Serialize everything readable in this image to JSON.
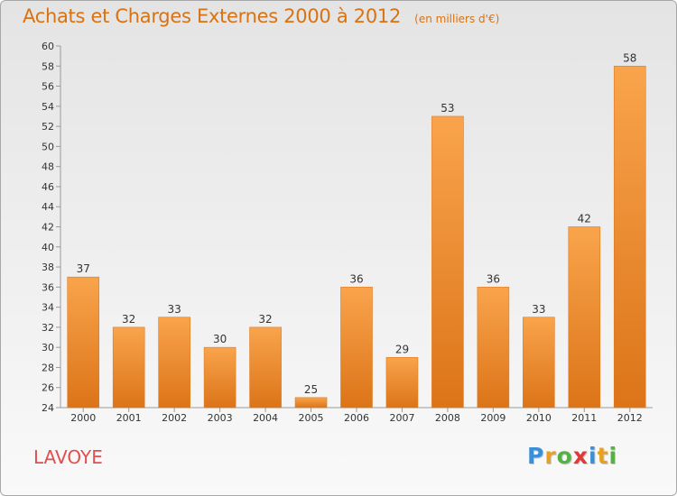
{
  "title": "Achats et Charges Externes 2000 à 2012",
  "unit": "(en milliers d'€)",
  "commune": "LAVOYE",
  "logo": {
    "letters": [
      "P",
      "r",
      "o",
      "x",
      "i",
      "t",
      "i"
    ],
    "colors": [
      "#3a8fd6",
      "#e8a020",
      "#55b142",
      "#e03a3a",
      "#3a8fd6",
      "#e8a020",
      "#55b142"
    ]
  },
  "colors": {
    "bar_light": "#f9a44c",
    "bar_dark": "#dc7418",
    "title": "#d87212",
    "commune": "#e14f4f"
  },
  "chart_data": {
    "type": "bar",
    "title": "Achats et Charges Externes 2000 à 2012",
    "subtitle": "(en milliers d'€)",
    "categories": [
      "2000",
      "2001",
      "2002",
      "2003",
      "2004",
      "2005",
      "2006",
      "2007",
      "2008",
      "2009",
      "2010",
      "2011",
      "2012"
    ],
    "values": [
      37,
      32,
      33,
      30,
      32,
      25,
      36,
      29,
      53,
      36,
      33,
      42,
      58
    ],
    "ylim": [
      24,
      60
    ],
    "yticks": [
      24,
      26,
      28,
      30,
      32,
      34,
      36,
      38,
      40,
      42,
      44,
      46,
      48,
      50,
      52,
      54,
      56,
      58,
      60
    ],
    "grid": false,
    "data_labels": true
  }
}
